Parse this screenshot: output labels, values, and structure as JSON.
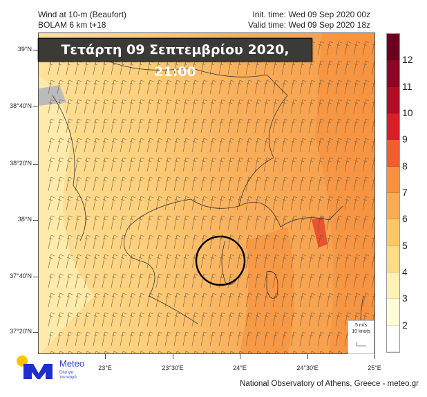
{
  "header": {
    "title_line1": "Wind at 10-m (Beaufort)",
    "title_line2": "BOLAM 6 km t+18",
    "init_time": "Init. time: Wed 09 Sep 2020 00z",
    "valid_time": "Valid time: Wed 09 Sep 2020 18z"
  },
  "banner": "Τετάρτη 09 Σεπτεμβρίου 2020, 21:00",
  "axes": {
    "lat_ticks": [
      "39°N",
      "38°40'N",
      "38°20'N",
      "38°N",
      "37°40'N",
      "37°20'N"
    ],
    "lon_ticks": [
      "23°E",
      "23°30'E",
      "24°E",
      "24°30'E",
      "25°E"
    ]
  },
  "colorbar": {
    "labels": [
      "12",
      "11",
      "10",
      "9",
      "8",
      "7",
      "6",
      "5",
      "4",
      "3",
      "2"
    ],
    "colors": [
      "#6b0020",
      "#8e0525",
      "#b30c27",
      "#d91e26",
      "#f25c2e",
      "#f7913f",
      "#f9ad52",
      "#fbc767",
      "#fddb87",
      "#fef1b3",
      "#fffbd6",
      "#ffffff"
    ]
  },
  "legend": {
    "speed": "5 m/s",
    "knots": "10 knots"
  },
  "logo": {
    "name": "Meteo",
    "slogan": "Όλα για τον καιρό",
    "accent": "#ffc400",
    "brand": "#1e2ecf"
  },
  "credit": "National Observatory of Athens, Greece - meteo.gr"
}
